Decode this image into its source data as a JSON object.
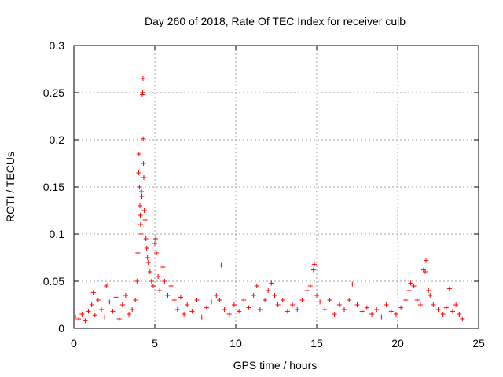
{
  "chart_data": {
    "type": "scatter",
    "title": "Day 260 of 2018, Rate Of TEC Index for receiver cuib",
    "xlabel": "GPS time / hours",
    "ylabel": "ROTI / TECUs",
    "xlim": [
      0,
      25
    ],
    "ylim": [
      0,
      0.3
    ],
    "x_ticks": [
      0,
      5,
      10,
      15,
      20,
      25
    ],
    "x_tick_labels": [
      "0",
      "5",
      "10",
      "15",
      "20",
      "25"
    ],
    "y_ticks": [
      0,
      0.05,
      0.1,
      0.15,
      0.2,
      0.25,
      0.3
    ],
    "y_tick_labels": [
      "0",
      "0.05",
      "0.1",
      "0.15",
      "0.2",
      "0.25",
      "0.3"
    ],
    "grid": true,
    "marker": "+",
    "marker_color": "#ff0000",
    "series": [
      {
        "name": "ROTI",
        "points": [
          [
            0.1,
            0.012
          ],
          [
            0.3,
            0.01
          ],
          [
            0.5,
            0.015
          ],
          [
            0.7,
            0.008
          ],
          [
            0.9,
            0.018
          ],
          [
            1.1,
            0.025
          ],
          [
            1.2,
            0.038
          ],
          [
            1.3,
            0.014
          ],
          [
            1.5,
            0.03
          ],
          [
            1.7,
            0.02
          ],
          [
            1.9,
            0.012
          ],
          [
            2.0,
            0.045
          ],
          [
            2.1,
            0.047
          ],
          [
            2.2,
            0.028
          ],
          [
            2.4,
            0.018
          ],
          [
            2.6,
            0.033
          ],
          [
            2.8,
            0.01
          ],
          [
            3.0,
            0.025
          ],
          [
            3.2,
            0.035
          ],
          [
            3.4,
            0.015
          ],
          [
            3.6,
            0.02
          ],
          [
            3.8,
            0.03
          ],
          [
            3.9,
            0.05
          ],
          [
            3.95,
            0.08
          ],
          [
            4.0,
            0.165
          ],
          [
            4.02,
            0.185
          ],
          [
            4.05,
            0.15
          ],
          [
            4.08,
            0.13
          ],
          [
            4.1,
            0.12
          ],
          [
            4.12,
            0.11
          ],
          [
            4.15,
            0.1
          ],
          [
            4.18,
            0.145
          ],
          [
            4.2,
            0.14
          ],
          [
            4.22,
            0.248
          ],
          [
            4.25,
            0.25
          ],
          [
            4.27,
            0.265
          ],
          [
            4.28,
            0.201
          ],
          [
            4.3,
            0.175
          ],
          [
            4.32,
            0.16
          ],
          [
            4.35,
            0.125
          ],
          [
            4.4,
            0.115
          ],
          [
            4.45,
            0.095
          ],
          [
            4.5,
            0.085
          ],
          [
            4.55,
            0.075
          ],
          [
            4.6,
            0.07
          ],
          [
            4.7,
            0.06
          ],
          [
            4.8,
            0.05
          ],
          [
            4.9,
            0.045
          ],
          [
            5.0,
            0.09
          ],
          [
            5.05,
            0.095
          ],
          [
            5.1,
            0.08
          ],
          [
            5.2,
            0.055
          ],
          [
            5.3,
            0.04
          ],
          [
            5.5,
            0.065
          ],
          [
            5.6,
            0.05
          ],
          [
            5.8,
            0.035
          ],
          [
            6.0,
            0.045
          ],
          [
            6.2,
            0.03
          ],
          [
            6.4,
            0.02
          ],
          [
            6.6,
            0.033
          ],
          [
            6.8,
            0.015
          ],
          [
            7.0,
            0.025
          ],
          [
            7.3,
            0.018
          ],
          [
            7.6,
            0.03
          ],
          [
            7.9,
            0.012
          ],
          [
            8.2,
            0.022
          ],
          [
            8.5,
            0.028
          ],
          [
            8.8,
            0.035
          ],
          [
            9.0,
            0.03
          ],
          [
            9.1,
            0.067
          ],
          [
            9.3,
            0.02
          ],
          [
            9.6,
            0.015
          ],
          [
            9.9,
            0.025
          ],
          [
            10.2,
            0.018
          ],
          [
            10.5,
            0.03
          ],
          [
            10.8,
            0.022
          ],
          [
            11.1,
            0.035
          ],
          [
            11.3,
            0.045
          ],
          [
            11.5,
            0.02
          ],
          [
            11.8,
            0.03
          ],
          [
            12.0,
            0.04
          ],
          [
            12.2,
            0.048
          ],
          [
            12.4,
            0.035
          ],
          [
            12.6,
            0.025
          ],
          [
            12.9,
            0.03
          ],
          [
            13.2,
            0.018
          ],
          [
            13.5,
            0.025
          ],
          [
            13.8,
            0.02
          ],
          [
            14.1,
            0.03
          ],
          [
            14.4,
            0.04
          ],
          [
            14.6,
            0.045
          ],
          [
            14.8,
            0.062
          ],
          [
            14.85,
            0.068
          ],
          [
            15.0,
            0.035
          ],
          [
            15.2,
            0.028
          ],
          [
            15.5,
            0.02
          ],
          [
            15.8,
            0.03
          ],
          [
            16.1,
            0.015
          ],
          [
            16.4,
            0.025
          ],
          [
            16.7,
            0.02
          ],
          [
            17.0,
            0.03
          ],
          [
            17.2,
            0.047
          ],
          [
            17.5,
            0.025
          ],
          [
            17.8,
            0.018
          ],
          [
            18.1,
            0.022
          ],
          [
            18.4,
            0.015
          ],
          [
            18.7,
            0.02
          ],
          [
            19.0,
            0.012
          ],
          [
            19.3,
            0.025
          ],
          [
            19.6,
            0.018
          ],
          [
            19.9,
            0.015
          ],
          [
            20.2,
            0.022
          ],
          [
            20.5,
            0.03
          ],
          [
            20.7,
            0.04
          ],
          [
            20.8,
            0.048
          ],
          [
            21.0,
            0.045
          ],
          [
            21.2,
            0.03
          ],
          [
            21.4,
            0.025
          ],
          [
            21.6,
            0.062
          ],
          [
            21.7,
            0.06
          ],
          [
            21.75,
            0.072
          ],
          [
            21.9,
            0.04
          ],
          [
            22.0,
            0.035
          ],
          [
            22.2,
            0.025
          ],
          [
            22.5,
            0.02
          ],
          [
            22.8,
            0.015
          ],
          [
            23.0,
            0.022
          ],
          [
            23.2,
            0.042
          ],
          [
            23.4,
            0.018
          ],
          [
            23.6,
            0.025
          ],
          [
            23.8,
            0.015
          ],
          [
            24.0,
            0.01
          ]
        ]
      }
    ]
  }
}
